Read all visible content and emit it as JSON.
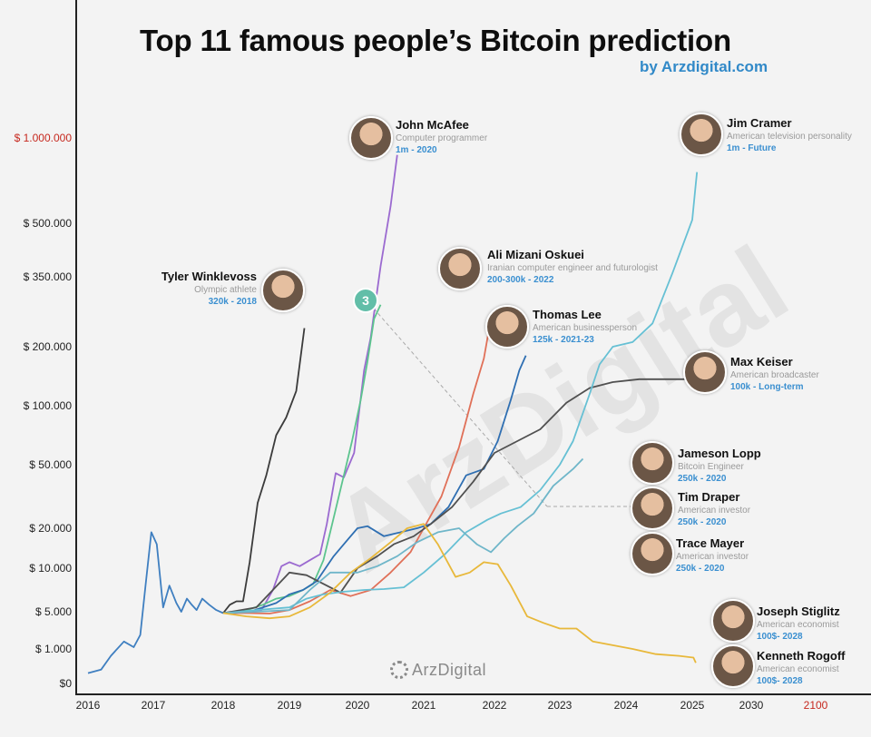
{
  "title": "Top 11 famous people’s Bitcoin prediction",
  "subtitle": "by Arzdigital.com",
  "brand": "ArzDigital",
  "chart_data": {
    "type": "line",
    "y_tick_labels": [
      "$0",
      "$ 1.000",
      "$ 5.000",
      "$ 10.000",
      "$ 20.000",
      "$ 50.000",
      "$ 100.000",
      "$ 200.000",
      "$ 350.000",
      "$ 500.000",
      "$ 1.000.000"
    ],
    "y_tick_values": [
      0,
      1000,
      5000,
      10000,
      20000,
      50000,
      100000,
      200000,
      350000,
      500000,
      1000000
    ],
    "x_tick_labels": [
      "2016",
      "2017",
      "2018",
      "2019",
      "2020",
      "2021",
      "2022",
      "2023",
      "2024",
      "2025",
      "2030",
      "2100"
    ],
    "x_tick_values": [
      2016,
      2017,
      2018,
      2019,
      2020,
      2021,
      2022,
      2023,
      2024,
      2025,
      2030,
      2100
    ],
    "highlight_labels": [
      "$ 1.000.000",
      "2100"
    ],
    "highlight_color": "#c6281e",
    "badge": "3",
    "series": [
      {
        "color": "#3f7fc0",
        "points": [
          [
            2016.0,
            300
          ],
          [
            2016.2,
            400
          ],
          [
            2016.35,
            800
          ],
          [
            2016.55,
            1800
          ],
          [
            2016.7,
            1200
          ],
          [
            2016.8,
            2500
          ],
          [
            2016.88,
            8000
          ],
          [
            2016.97,
            19000
          ],
          [
            2017.05,
            16000
          ],
          [
            2017.14,
            5500
          ],
          [
            2017.23,
            8000
          ],
          [
            2017.33,
            6000
          ],
          [
            2017.4,
            5000
          ],
          [
            2017.48,
            6500
          ],
          [
            2017.55,
            5800
          ],
          [
            2017.62,
            5200
          ],
          [
            2017.7,
            6500
          ],
          [
            2017.8,
            5800
          ],
          [
            2017.9,
            5200
          ],
          [
            2018.0,
            4850
          ]
        ]
      },
      {
        "color": "#3b3b3b",
        "points": [
          [
            2018.0,
            4850
          ],
          [
            2018.1,
            5800
          ],
          [
            2018.2,
            6200
          ],
          [
            2018.3,
            6200
          ],
          [
            2018.4,
            11500
          ],
          [
            2018.52,
            32000
          ],
          [
            2018.65,
            45000
          ],
          [
            2018.8,
            75000
          ],
          [
            2018.95,
            90000
          ],
          [
            2019.1,
            125000
          ],
          [
            2019.22,
            240000
          ]
        ]
      },
      {
        "color": "#9b6ad0",
        "points": [
          [
            2018.0,
            4850
          ],
          [
            2018.2,
            4850
          ],
          [
            2018.4,
            4950
          ],
          [
            2018.58,
            5200
          ],
          [
            2018.75,
            7500
          ],
          [
            2018.88,
            10500
          ],
          [
            2019.0,
            11500
          ],
          [
            2019.15,
            10500
          ],
          [
            2019.3,
            12000
          ],
          [
            2019.45,
            13500
          ],
          [
            2019.55,
            22000
          ],
          [
            2019.68,
            46000
          ],
          [
            2019.8,
            44000
          ],
          [
            2019.95,
            60000
          ],
          [
            2020.1,
            160000
          ],
          [
            2020.2,
            220000
          ],
          [
            2020.35,
            380000
          ],
          [
            2020.5,
            600000
          ],
          [
            2020.6,
            900000
          ]
        ]
      },
      {
        "color": "#5cc48e",
        "points": [
          [
            2018.0,
            4850
          ],
          [
            2018.2,
            5000
          ],
          [
            2018.4,
            5300
          ],
          [
            2018.6,
            5800
          ],
          [
            2018.8,
            6500
          ],
          [
            2019.0,
            6800
          ],
          [
            2019.2,
            7500
          ],
          [
            2019.35,
            8200
          ],
          [
            2019.5,
            12000
          ],
          [
            2019.65,
            25000
          ],
          [
            2019.8,
            45000
          ],
          [
            2019.92,
            70000
          ],
          [
            2020.05,
            110000
          ],
          [
            2020.15,
            175000
          ],
          [
            2020.25,
            260000
          ],
          [
            2020.35,
            290000
          ]
        ]
      },
      {
        "color": "#e07058",
        "points": [
          [
            2018.0,
            4850
          ],
          [
            2018.4,
            4850
          ],
          [
            2018.7,
            4800
          ],
          [
            2019.0,
            5200
          ],
          [
            2019.3,
            6200
          ],
          [
            2019.6,
            7500
          ],
          [
            2019.9,
            6800
          ],
          [
            2020.2,
            7500
          ],
          [
            2020.5,
            9500
          ],
          [
            2020.8,
            14000
          ],
          [
            2021.0,
            20000
          ],
          [
            2021.25,
            35000
          ],
          [
            2021.5,
            65000
          ],
          [
            2021.7,
            120000
          ],
          [
            2021.85,
            180000
          ],
          [
            2021.95,
            260000
          ]
        ]
      },
      {
        "color": "#2f6fb2",
        "points": [
          [
            2018.0,
            4850
          ],
          [
            2018.4,
            5000
          ],
          [
            2018.8,
            6000
          ],
          [
            2019.0,
            7000
          ],
          [
            2019.2,
            7500
          ],
          [
            2019.4,
            8500
          ],
          [
            2019.65,
            13000
          ],
          [
            2019.85,
            17000
          ],
          [
            2020.0,
            20000
          ],
          [
            2020.15,
            21000
          ],
          [
            2020.4,
            18000
          ],
          [
            2020.65,
            19000
          ],
          [
            2020.9,
            20000
          ],
          [
            2021.1,
            22000
          ],
          [
            2021.35,
            30000
          ],
          [
            2021.6,
            45000
          ],
          [
            2021.85,
            48000
          ],
          [
            2022.05,
            70000
          ],
          [
            2022.25,
            110000
          ],
          [
            2022.38,
            160000
          ],
          [
            2022.48,
            185000
          ]
        ]
      },
      {
        "color": "#505050",
        "points": [
          [
            2018.0,
            4850
          ],
          [
            2018.5,
            5500
          ],
          [
            2019.0,
            9500
          ],
          [
            2019.25,
            9200
          ],
          [
            2019.5,
            8200
          ],
          [
            2019.75,
            7200
          ],
          [
            2020.0,
            10000
          ],
          [
            2020.3,
            13000
          ],
          [
            2020.55,
            16000
          ],
          [
            2020.85,
            18000
          ],
          [
            2021.1,
            22000
          ],
          [
            2021.4,
            30000
          ],
          [
            2021.7,
            42000
          ],
          [
            2022.0,
            60000
          ],
          [
            2022.35,
            70000
          ],
          [
            2022.7,
            80000
          ],
          [
            2023.1,
            105000
          ],
          [
            2023.45,
            130000
          ],
          [
            2023.8,
            140000
          ],
          [
            2024.2,
            145000
          ],
          [
            2024.5,
            145000
          ],
          [
            2025.0,
            145000
          ],
          [
            2025.3,
            145000
          ]
        ]
      },
      {
        "color": "#66c0d4",
        "points": [
          [
            2018.0,
            4850
          ],
          [
            2018.5,
            5200
          ],
          [
            2019.0,
            5500
          ],
          [
            2019.25,
            6500
          ],
          [
            2019.5,
            7000
          ],
          [
            2019.8,
            7300
          ],
          [
            2020.1,
            7500
          ],
          [
            2020.4,
            7600
          ],
          [
            2020.7,
            7800
          ],
          [
            2021.0,
            9500
          ],
          [
            2021.3,
            13500
          ],
          [
            2021.6,
            19000
          ],
          [
            2021.9,
            24000
          ],
          [
            2022.1,
            27000
          ],
          [
            2022.4,
            30000
          ],
          [
            2022.7,
            38000
          ],
          [
            2023.0,
            50000
          ],
          [
            2023.2,
            70000
          ],
          [
            2023.45,
            120000
          ],
          [
            2023.6,
            170000
          ],
          [
            2023.8,
            200000
          ],
          [
            2024.1,
            210000
          ],
          [
            2024.4,
            250000
          ],
          [
            2024.7,
            360000
          ],
          [
            2025.0,
            520000
          ],
          [
            2025.25,
            700000
          ],
          [
            2025.4,
            800000
          ]
        ]
      },
      {
        "color": "#6fb6c9",
        "points": [
          [
            2018.0,
            4850
          ],
          [
            2018.5,
            5000
          ],
          [
            2019.0,
            5200
          ],
          [
            2019.3,
            7500
          ],
          [
            2019.6,
            9500
          ],
          [
            2020.0,
            9500
          ],
          [
            2020.3,
            10500
          ],
          [
            2020.6,
            13000
          ],
          [
            2020.9,
            16500
          ],
          [
            2021.2,
            19000
          ],
          [
            2021.5,
            20000
          ],
          [
            2021.75,
            16000
          ],
          [
            2021.95,
            14000
          ],
          [
            2022.15,
            17500
          ],
          [
            2022.35,
            21000
          ],
          [
            2022.6,
            27000
          ],
          [
            2022.9,
            40000
          ],
          [
            2023.2,
            48000
          ],
          [
            2023.35,
            55000
          ]
        ]
      },
      {
        "color": "#e8b83a",
        "points": [
          [
            2018.0,
            4850
          ],
          [
            2018.35,
            4500
          ],
          [
            2018.7,
            4300
          ],
          [
            2019.0,
            4500
          ],
          [
            2019.3,
            5500
          ],
          [
            2019.6,
            7200
          ],
          [
            2019.9,
            9500
          ],
          [
            2020.2,
            12500
          ],
          [
            2020.5,
            16500
          ],
          [
            2020.75,
            20000
          ],
          [
            2021.0,
            22000
          ],
          [
            2021.2,
            16000
          ],
          [
            2021.45,
            9000
          ],
          [
            2021.65,
            9500
          ],
          [
            2021.85,
            11500
          ],
          [
            2022.05,
            11000
          ],
          [
            2022.25,
            8000
          ],
          [
            2022.5,
            4500
          ],
          [
            2022.75,
            3800
          ],
          [
            2023.0,
            3200
          ],
          [
            2023.25,
            3200
          ],
          [
            2023.5,
            1800
          ],
          [
            2023.8,
            1400
          ],
          [
            2024.1,
            1000
          ],
          [
            2024.45,
            850
          ],
          [
            2024.8,
            800
          ],
          [
            2025.1,
            750
          ],
          [
            2025.3,
            600
          ]
        ]
      }
    ]
  },
  "people": [
    {
      "name": "Tyler Winklevoss",
      "role": "Olympic athlete",
      "prediction": "320k - 2018"
    },
    {
      "name": "John McAfee",
      "role": "Computer programmer",
      "prediction": "1m - 2020"
    },
    {
      "name": "Jim Cramer",
      "role": "American television personality",
      "prediction": "1m - Future"
    },
    {
      "name": "Ali Mizani Oskuei",
      "role": "Iranian computer engineer and futurologist",
      "prediction": "200-300k - 2022"
    },
    {
      "name": "Thomas Lee",
      "role": "American businessperson",
      "prediction": "125k - 2021-23"
    },
    {
      "name": "Max Keiser",
      "role": "American broadcaster",
      "prediction": "100k - Long-term"
    },
    {
      "name": "Jameson Lopp",
      "role": "Bitcoin Engineer",
      "prediction": "250k - 2020"
    },
    {
      "name": "Tim Draper",
      "role": "American investor",
      "prediction": "250k - 2020"
    },
    {
      "name": "Trace Mayer",
      "role": "American investor",
      "prediction": "250k - 2020"
    },
    {
      "name": "Joseph Stiglitz",
      "role": "American economist",
      "prediction": "100$- 2028"
    },
    {
      "name": "Kenneth Rogoff",
      "role": "American economist",
      "prediction": "100$- 2028"
    }
  ]
}
